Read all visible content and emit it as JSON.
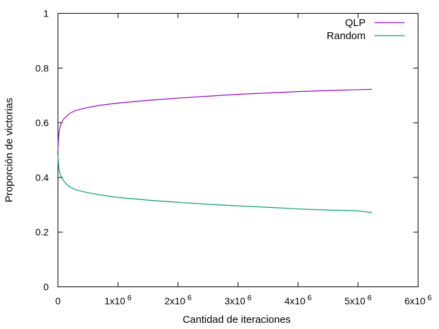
{
  "chart_data": {
    "type": "line",
    "title": "",
    "xlabel": "Cantidad de iteraciones",
    "ylabel": "Proporción de victorias",
    "xlim": [
      0,
      6000000
    ],
    "ylim": [
      0,
      1
    ],
    "grid": false,
    "legend": "top-right",
    "x_ticks": [
      {
        "value": 0,
        "base": "0",
        "exp": ""
      },
      {
        "value": 1000000,
        "base": "1x10",
        "exp": "6"
      },
      {
        "value": 2000000,
        "base": "2x10",
        "exp": "6"
      },
      {
        "value": 3000000,
        "base": "3x10",
        "exp": "6"
      },
      {
        "value": 4000000,
        "base": "4x10",
        "exp": "6"
      },
      {
        "value": 5000000,
        "base": "5x10",
        "exp": "6"
      },
      {
        "value": 6000000,
        "base": "6x10",
        "exp": "6"
      }
    ],
    "y_ticks": [
      {
        "value": 0,
        "label": "0"
      },
      {
        "value": 0.2,
        "label": "0.2"
      },
      {
        "value": 0.4,
        "label": "0.4"
      },
      {
        "value": 0.6,
        "label": "0.6"
      },
      {
        "value": 0.8,
        "label": "0.8"
      },
      {
        "value": 1,
        "label": "1"
      }
    ],
    "series": [
      {
        "name": "QLP",
        "color": "#9400d3",
        "x": [
          0,
          5000,
          10000,
          20000,
          40000,
          60000,
          80000,
          100000,
          150000,
          200000,
          300000,
          400000,
          500000,
          700000,
          1000000,
          1500000,
          2000000,
          2500000,
          3000000,
          3500000,
          4000000,
          4500000,
          5000000,
          5230000
        ],
        "y": [
          0.5,
          0.53,
          0.55,
          0.57,
          0.59,
          0.6,
          0.608,
          0.615,
          0.625,
          0.635,
          0.645,
          0.651,
          0.656,
          0.664,
          0.672,
          0.682,
          0.69,
          0.697,
          0.704,
          0.709,
          0.714,
          0.718,
          0.721,
          0.722
        ]
      },
      {
        "name": "Random",
        "color": "#009e73",
        "x": [
          0,
          5000,
          10000,
          20000,
          40000,
          60000,
          80000,
          100000,
          150000,
          200000,
          300000,
          400000,
          500000,
          700000,
          1000000,
          1500000,
          2000000,
          2500000,
          3000000,
          3500000,
          4000000,
          4500000,
          5000000,
          5230000
        ],
        "y": [
          0.48,
          0.46,
          0.44,
          0.425,
          0.41,
          0.4,
          0.393,
          0.386,
          0.374,
          0.365,
          0.355,
          0.349,
          0.344,
          0.336,
          0.327,
          0.317,
          0.309,
          0.302,
          0.296,
          0.291,
          0.285,
          0.281,
          0.278,
          0.272
        ]
      }
    ]
  }
}
